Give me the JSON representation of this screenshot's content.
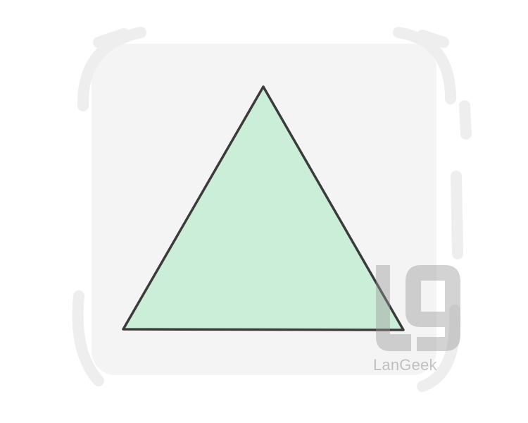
{
  "watermark": {
    "brand_text": "LanGeek"
  },
  "colors": {
    "card_background": "#f4f4f4",
    "frame_marks": "#eeeeee",
    "triangle_fill": "#cbeed8",
    "triangle_stroke": "#3b3b3b",
    "watermark": "#9a9a9a"
  },
  "icons": {
    "shape": "equilateral-triangle",
    "watermark": "langeek-logo"
  }
}
